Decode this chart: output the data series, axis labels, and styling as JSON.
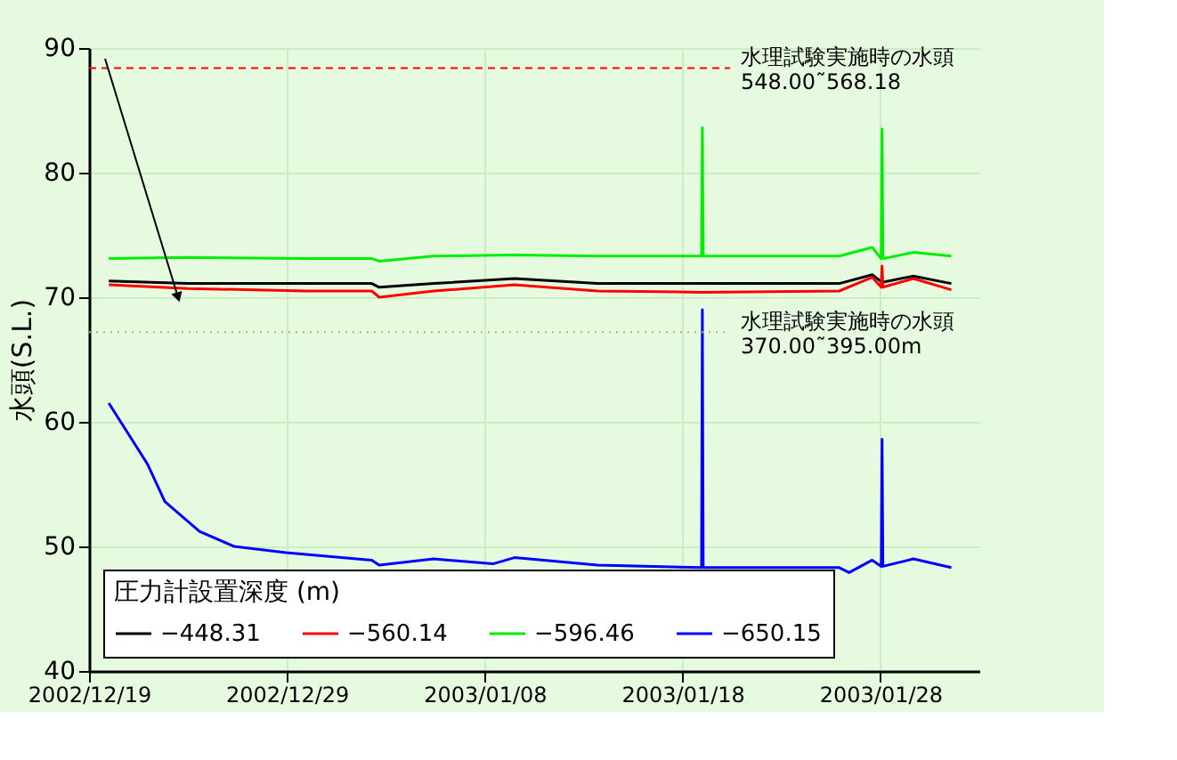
{
  "chart_data": {
    "type": "line",
    "ylabel": "水頭(S.L.)",
    "legend_title": "圧力計設置深度 (m)",
    "legend": "bottom left",
    "grid": true,
    "line_style": "solid",
    "marker": "none",
    "xlim": [
      "2002-12-19",
      "2003-02-02"
    ],
    "xticks": [
      {
        "value": "2002-12-19",
        "label": "2002/12/19"
      },
      {
        "value": "2002-12-29",
        "label": "2002/12/29"
      },
      {
        "value": "2003-01-08",
        "label": "2003/01/08"
      },
      {
        "value": "2003-01-18",
        "label": "2003/01/18"
      },
      {
        "value": "2003-01-28",
        "label": "2003/01/28"
      }
    ],
    "ylim": [
      40,
      90
    ],
    "yticks": [
      40,
      50,
      60,
      70,
      80,
      90
    ],
    "series": [
      {
        "name": "−448.31",
        "color": "#000000",
        "x": [
          "2002-12-20T00:00",
          "2002-12-24T00:00",
          "2002-12-30T00:00",
          "2003-01-02T07:00",
          "2003-01-02T16:00",
          "2003-01-05T10:00",
          "2003-01-09T12:00",
          "2003-01-13T17:00",
          "2003-01-18T22:00",
          "2003-01-25T22:00",
          "2003-01-27T14:00",
          "2003-01-28T02:00",
          "2003-01-29T16:00",
          "2003-01-31T14:00"
        ],
        "values": [
          71.3,
          71.1,
          71.1,
          71.1,
          70.8,
          71.1,
          71.5,
          71.1,
          71.1,
          71.1,
          71.8,
          71.2,
          71.7,
          71.1
        ]
      },
      {
        "name": "−560.14",
        "color": "#ff0000",
        "x": [
          "2002-12-20T00:00",
          "2002-12-24T00:00",
          "2002-12-30T00:00",
          "2003-01-02T07:00",
          "2003-01-02T16:00",
          "2003-01-05T10:00",
          "2003-01-09T12:00",
          "2003-01-13T17:00",
          "2003-01-18T22:00",
          "2003-01-25T22:00",
          "2003-01-27T14:00",
          "2003-01-28T01:00",
          "2003-01-28T02:00",
          "2003-01-28T03:00",
          "2003-01-29T16:00",
          "2003-01-31T14:00"
        ],
        "values": [
          71.0,
          70.7,
          70.5,
          70.5,
          70.0,
          70.5,
          71.0,
          70.5,
          70.4,
          70.5,
          71.6,
          70.8,
          72.5,
          70.8,
          71.5,
          70.6
        ]
      },
      {
        "name": "−596.46",
        "color": "#00ee00",
        "x": [
          "2002-12-20T00:00",
          "2002-12-24T00:00",
          "2002-12-30T00:00",
          "2003-01-02T07:00",
          "2003-01-02T16:00",
          "2003-01-05T10:00",
          "2003-01-09T12:00",
          "2003-01-13T17:00",
          "2003-01-18T23:00",
          "2003-01-19T00:00",
          "2003-01-19T01:00",
          "2003-01-25T22:00",
          "2003-01-27T14:00",
          "2003-01-28T01:00",
          "2003-01-28T02:00",
          "2003-01-28T03:00",
          "2003-01-29T16:00",
          "2003-01-31T14:00"
        ],
        "values": [
          73.1,
          73.2,
          73.1,
          73.1,
          72.9,
          73.3,
          73.4,
          73.3,
          73.3,
          83.6,
          73.3,
          73.3,
          74.0,
          73.1,
          83.5,
          73.1,
          73.6,
          73.3
        ]
      },
      {
        "name": "−650.15",
        "color": "#0000ff",
        "x": [
          "2002-12-20T00:00",
          "2002-12-21T23:00",
          "2002-12-22T20:00",
          "2002-12-24T14:00",
          "2002-12-26T08:00",
          "2002-12-28T23:00",
          "2003-01-02T07:00",
          "2003-01-02T16:00",
          "2003-01-05T10:00",
          "2003-01-08T10:00",
          "2003-01-09T12:00",
          "2003-01-13T17:00",
          "2003-01-18T23:00",
          "2003-01-19T00:00",
          "2003-01-19T01:00",
          "2003-01-25T22:00",
          "2003-01-26T10:00",
          "2003-01-27T14:00",
          "2003-01-28T01:00",
          "2003-01-28T02:00",
          "2003-01-28T03:00",
          "2003-01-29T16:00",
          "2003-01-31T14:00"
        ],
        "values": [
          61.5,
          56.6,
          53.6,
          51.2,
          50.0,
          49.5,
          48.9,
          48.5,
          49.0,
          48.6,
          49.1,
          48.5,
          48.3,
          69.0,
          48.3,
          48.3,
          47.9,
          48.9,
          48.4,
          58.6,
          48.4,
          49.0,
          48.3
        ]
      }
    ],
    "ref_lines": [
      {
        "axis": "y",
        "value": 88.4,
        "label": "水理試験実施時の水頭\n548.00˜568.18",
        "color": "#ff0000",
        "line_style": "dashed"
      },
      {
        "axis": "y",
        "value": 67.2,
        "label": "水理試験実施時の水頭\n370.00˜395.00m",
        "color": "#b5b55a",
        "line_style": "dotted"
      }
    ]
  }
}
